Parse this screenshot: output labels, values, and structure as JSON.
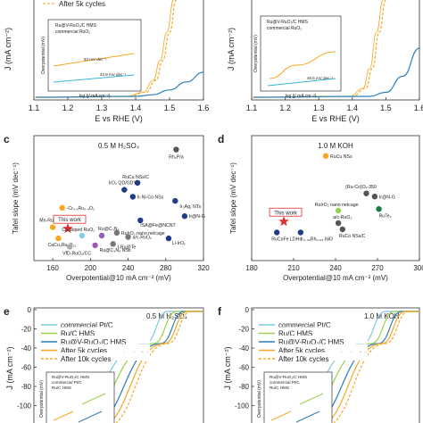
{
  "chart_data": [
    {
      "panel": "",
      "type": "line",
      "legend": [
        "After 5k cycles"
      ],
      "inset_legend": [
        "Ru@V-RuO₂/C HMS",
        "commercial RuO₂"
      ],
      "inset_ylabel": "Overpotential (mV)",
      "inset_xlabel": "log (j/ mA cm⁻²)",
      "inset_annotations": [
        "63 mV dec⁻¹",
        "42.8 mV dec⁻¹"
      ],
      "ylabel": "J (mA cm⁻²)",
      "xlabel": "E vs RHE (V)",
      "x_ticks": [
        "1.1",
        "1.2",
        "1.3",
        "1.4",
        "1.5",
        "1.6"
      ],
      "xlim": [
        1.1,
        1.6
      ],
      "series": [
        {
          "color": "#f5a623",
          "dashed": true,
          "x": [
            1.38,
            1.43,
            1.46,
            1.48,
            1.5,
            1.52
          ],
          "y": [
            0,
            5,
            20,
            45,
            80,
            120
          ]
        },
        {
          "color": "#2c7fb8",
          "dashed": false,
          "x": [
            1.4,
            1.45,
            1.5,
            1.55,
            1.6
          ],
          "y": [
            0,
            2,
            8,
            18,
            30
          ]
        }
      ]
    },
    {
      "panel": "",
      "type": "line",
      "inset_legend": [
        "Ru@V-RuO₂/C HMS",
        "commercial RuO₂"
      ],
      "inset_ylabel": "Overpotential (mV)",
      "inset_xlabel": "log (j/ mA cm⁻²)",
      "inset_annotations": [
        "46.5 mV dec⁻¹"
      ],
      "ylabel": "J (mA cm⁻²)",
      "xlabel": "E vs RHE (V)",
      "x_ticks": [
        "1.1",
        "1.2",
        "1.3",
        "1.4",
        "1.5",
        "1.6"
      ],
      "xlim": [
        1.1,
        1.6
      ],
      "series": [
        {
          "color": "#f5a623",
          "dashed": true,
          "x": [
            1.4,
            1.44,
            1.46,
            1.48,
            1.5
          ],
          "y": [
            0,
            10,
            35,
            80,
            120
          ]
        },
        {
          "color": "#2c7fb8",
          "dashed": false,
          "x": [
            1.45,
            1.5,
            1.55,
            1.6
          ],
          "y": [
            0,
            5,
            25,
            60
          ]
        }
      ]
    },
    {
      "panel": "c",
      "type": "scatter",
      "title": "0.5 M H₂SO₄",
      "xlabel": "Overpotential@10 mA cm⁻² (mV)",
      "ylabel": "Tafel slope (mV dec⁻¹)",
      "xlim": [
        140,
        320
      ],
      "x_ticks": [
        "160",
        "200",
        "240",
        "280",
        "320"
      ],
      "highlight": "This work",
      "points": [
        {
          "label": "Rh₂P/a",
          "x": 291,
          "y": 100,
          "color": "#555555"
        },
        {
          "label": "RuCu NSs/C",
          "x": 250,
          "y": 76,
          "color": "#1f3b8a"
        },
        {
          "label": "IrO₂ QD/GDY",
          "x": 236,
          "y": 71,
          "color": "#1f3b8a"
        },
        {
          "label": "Ir-Ni-Co NSs",
          "x": 245,
          "y": 66,
          "color": "#1f3b8a"
        },
        {
          "label": "Ir₃Ag₁ NTs",
          "x": 290,
          "y": 63,
          "color": "#1f3b8a"
        },
        {
          "label": "-Cr₀.₆Ru₀.₄O₂",
          "x": 170,
          "y": 58,
          "color": "#f5a623"
        },
        {
          "label": "ISA@Fe@NCNT",
          "x": 253,
          "y": 49,
          "color": "#1f3b8a"
        },
        {
          "label": "Ir@N-G",
          "x": 300,
          "y": 52,
          "color": "#1f3b8a"
        },
        {
          "label": "Mn-RuO₂",
          "x": 160,
          "y": 44,
          "color": "#f5a623"
        },
        {
          "label": "This work",
          "x": 176,
          "y": 43,
          "color": "#e03030",
          "star": true
        },
        {
          "label": "RuIrO₂ nano netcage",
          "x": 228,
          "y": 40,
          "color": "#777777"
        },
        {
          "label": "a/c-RuO₂",
          "x": 240,
          "y": 37,
          "color": "#777777"
        },
        {
          "label": "Cu-doped RuO₂",
          "x": 191,
          "y": 38,
          "color": "#7fd0e8"
        },
        {
          "label": "Ru@C₃N₄",
          "x": 212,
          "y": 38,
          "color": "#9b59b6"
        },
        {
          "label": "CaCu₃Ru₄O₁₂",
          "x": 166,
          "y": 36,
          "color": "#f5a623"
        },
        {
          "label": "Li-IrOₓ",
          "x": 283,
          "y": 36,
          "color": "#1f3b8a"
        },
        {
          "label": "t-Ru@Te",
          "x": 224,
          "y": 32,
          "color": "#777777"
        },
        {
          "label": "Ru@C₃N₄ NSs",
          "x": 205,
          "y": 31,
          "color": "#9b59b6"
        },
        {
          "label": "VfD-RuO₂/CC",
          "x": 178,
          "y": 30,
          "color": "#aaaaaa"
        }
      ]
    },
    {
      "panel": "d",
      "type": "scatter",
      "title": "1.0 M KOH",
      "xlabel": "Overpotential@10 mA cm⁻² (mV)",
      "ylabel": "Tafel slope (mV dec⁻¹)",
      "xlim": [
        180,
        300
      ],
      "x_ticks": [
        "180",
        "210",
        "240",
        "270",
        "300"
      ],
      "highlight": "This work",
      "points": [
        {
          "label": "RuCu NSs",
          "x": 233,
          "y": 87,
          "color": "#f5a623"
        },
        {
          "label": "(Ru-Co)Oₓ-350",
          "x": 262,
          "y": 63,
          "color": "#555555"
        },
        {
          "label": "Ir@N-G",
          "x": 268,
          "y": 61,
          "color": "#555555"
        },
        {
          "label": "RuIrO₂ nano netcage",
          "x": 242,
          "y": 52,
          "color": "#9bcf4f"
        },
        {
          "label": "RuTe₂",
          "x": 271,
          "y": 53,
          "color": "#1a7a40"
        },
        {
          "label": "This work",
          "x": 203,
          "y": 45,
          "color": "#e03030",
          "star": true
        },
        {
          "label": "a/c-RuO₂",
          "x": 242,
          "y": 44,
          "color": "#555555"
        },
        {
          "label": "RuCo NSs/C",
          "x": 245,
          "y": 40,
          "color": "#555555"
        },
        {
          "label": "RuCoFe LDHs",
          "x": 198,
          "y": 38,
          "color": "#1f3b8a"
        },
        {
          "label": "Ir₀.₀₆Rh₀.₉₄-NiO",
          "x": 215,
          "y": 38,
          "color": "#1f3b8a"
        }
      ]
    },
    {
      "panel": "e",
      "type": "line",
      "title": "0.5 M H₂SO₄",
      "ylabel": "J (mA cm⁻²)",
      "y_ticks": [
        "0",
        "-20",
        "-40",
        "-60",
        "-80",
        "-100",
        "-120"
      ],
      "legend": [
        "commercial Pt/C",
        "Ru/C HMS",
        "Ru@V-RuO₂/C HMS",
        "After 5k cycles",
        "After 10k cycles"
      ],
      "inset_legend": [
        "Ru@V-RuO₂/C HMS",
        "commercial Pt/C",
        "Ru/C HMS"
      ],
      "inset_ylabel": "Overpotential (mV)"
    },
    {
      "panel": "f",
      "type": "line",
      "title": "1.0 M KOH",
      "ylabel": "J (mA cm⁻²)",
      "y_ticks": [
        "0",
        "-20",
        "-40",
        "-60",
        "-80",
        "-100",
        "-120"
      ],
      "legend": [
        "commercial Pt/C",
        "Ru/C HMS",
        "Ru@V-RuO₂/C HMS",
        "After 5k cycles",
        "After 10k cycles"
      ],
      "inset_legend": [
        "Ru@V-RuO₂/C HMS",
        "commercial Pt/C",
        "Ru/C HMS"
      ],
      "inset_ylabel": "Overpotential (mV)"
    }
  ]
}
